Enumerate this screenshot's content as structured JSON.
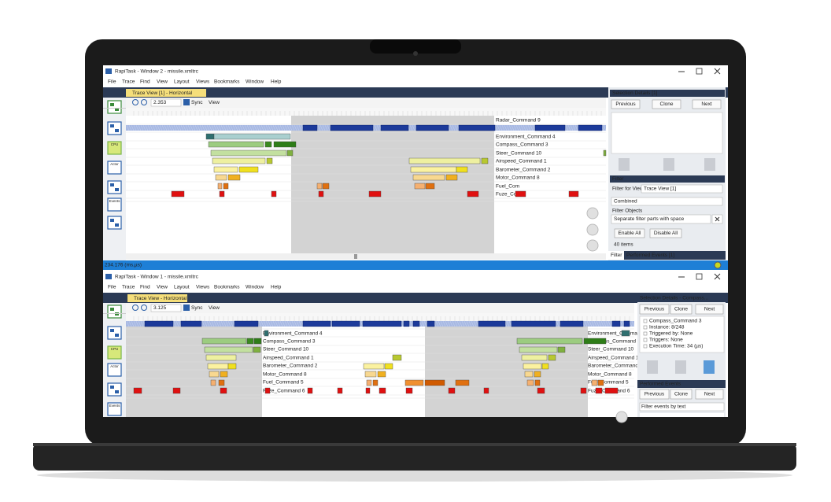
{
  "window_top": {
    "title": "RapiTask - Window 2 - missile.xmltrc",
    "menu": [
      "File",
      "Trace",
      "Find",
      "View",
      "Layout",
      "Views",
      "Bookmarks",
      "Window",
      "Help"
    ],
    "toolbar_labels": [
      "CPU",
      "Actor",
      "Events"
    ],
    "tab": "Trace View [1] - Horizontal",
    "zoom": "2.353",
    "sync": "Sync",
    "view": "View",
    "rows": [
      "Radar_Command 9",
      "Environment_Command 4",
      "Compass_Command 3",
      "Steer_Command 10",
      "Airspeed_Command 1",
      "Barometer_Command 2",
      "Motor_Command 8",
      "Fuel_Com",
      "Fuze_Com"
    ],
    "selection": {
      "title": "Selection Details [1]",
      "buttons": [
        "Previous",
        "Clone",
        "Next"
      ]
    },
    "filter": {
      "title": "Filter",
      "for_view_label": "Filter for View",
      "for_view": "Trace View [1]",
      "mode": "Combined",
      "objects_label": "Filter Objects",
      "placeholder": "Separate filter parts with space",
      "buttons": [
        "Enable All",
        "Disable All"
      ],
      "count": "40 items"
    },
    "tabs": [
      "Filter",
      "Performed Events [1]"
    ],
    "status": "234.176 (ms,µs)"
  },
  "window_bottom": {
    "title": "RapiTask - Window 1 - missile.xmltrc",
    "menu": [
      "File",
      "Trace",
      "Find",
      "View",
      "Layout",
      "Views",
      "Bookmarks",
      "Window",
      "Help"
    ],
    "toolbar_labels": [
      "CPU",
      "Actor",
      "Events"
    ],
    "tab": "Trace View - Horizontal",
    "zoom": "3.125",
    "sync": "Sync",
    "view": "View",
    "rows": [
      "Environment_Command 4",
      "Compass_Command 3",
      "Steer_Command 10",
      "Airspeed_Command 1",
      "Barometer_Command 2",
      "Motor_Command 8",
      "Fuel_Command 5",
      "Fuze_Command 6"
    ],
    "selection": {
      "title": "Selection Details - Compass...",
      "buttons": [
        "Previous",
        "Clone",
        "Next"
      ],
      "tree": [
        "Compass_Command 3",
        "Instance: 8/248",
        "Triggered by: None",
        "Triggers: None",
        "Execution Time: 34 (µs)"
      ]
    },
    "events": {
      "title": "Performed Events",
      "buttons": [
        "Previous",
        "Clone",
        "Next"
      ],
      "placeholder": "Filter events by text"
    }
  }
}
